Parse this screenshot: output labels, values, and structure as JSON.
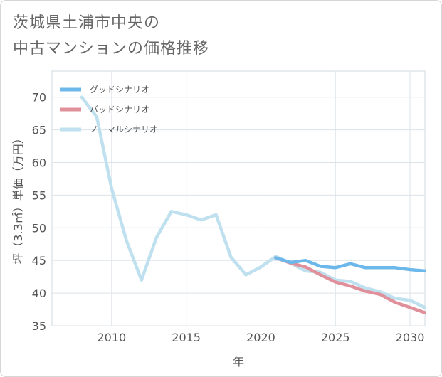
{
  "title": {
    "line1": "茨城県土浦市中央の",
    "line2": "中古マンションの価格推移"
  },
  "chart_data": {
    "type": "line",
    "title": "茨城県土浦市中央の中古マンションの価格推移",
    "xlabel": "年",
    "ylabel": "坪（3.3㎡）単価（万円）",
    "xlim": [
      2006,
      2031
    ],
    "ylim": [
      35,
      74
    ],
    "x_ticks": [
      2010,
      2015,
      2020,
      2025,
      2030
    ],
    "y_ticks": [
      35,
      40,
      45,
      50,
      55,
      60,
      65,
      70
    ],
    "grid": true,
    "legend_position": "top-left",
    "series": [
      {
        "name": "グッドシナリオ",
        "color": "#6cb8ea",
        "x": [
          2021,
          2022,
          2023,
          2024,
          2025,
          2026,
          2027,
          2028,
          2029,
          2030,
          2031
        ],
        "values": [
          45.4,
          44.7,
          45.0,
          44.1,
          43.9,
          44.5,
          43.9,
          43.9,
          43.9,
          43.6,
          43.4
        ]
      },
      {
        "name": "バッドシナリオ",
        "color": "#e0909a",
        "x": [
          2021,
          2022,
          2023,
          2024,
          2025,
          2026,
          2027,
          2028,
          2029,
          2030,
          2031
        ],
        "values": [
          45.4,
          44.6,
          44.0,
          42.8,
          41.7,
          41.1,
          40.3,
          39.8,
          38.6,
          37.8,
          37.0
        ]
      },
      {
        "name": "ノーマルシナリオ",
        "color": "#bfe0ee",
        "x": [
          2008,
          2009,
          2010,
          2011,
          2012,
          2013,
          2014,
          2015,
          2016,
          2017,
          2018,
          2019,
          2020,
          2021,
          2022,
          2023,
          2024,
          2025,
          2026,
          2027,
          2028,
          2029,
          2030,
          2031
        ],
        "values": [
          70.0,
          67.0,
          56.0,
          48.0,
          42.0,
          48.5,
          52.5,
          52.0,
          51.2,
          52.0,
          45.5,
          42.8,
          44.0,
          45.6,
          44.6,
          43.4,
          43.2,
          42.0,
          41.8,
          40.8,
          40.2,
          39.2,
          38.9,
          37.8
        ]
      }
    ]
  }
}
